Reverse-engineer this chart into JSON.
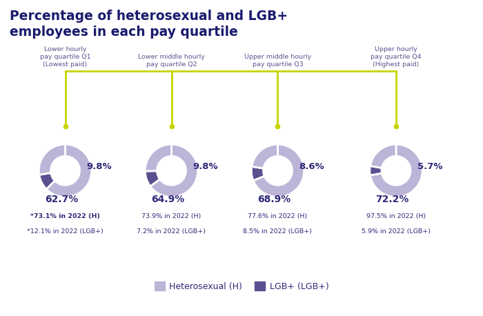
{
  "title": "Percentage of heterosexual and LGB+\nemployees in each pay quartile",
  "title_color": "#1a1a6e",
  "background_color": "#ffffff",
  "quartiles": [
    {
      "label": "Lower hourly\npay quartile Q1\n(Lowest paid)",
      "hetero_pct": 62.7,
      "lgb_pct": 9.8,
      "hetero_label": "62.7%",
      "lgb_label": "9.8%",
      "footnote_line1": "*73.1% in 2022 (H)",
      "footnote_line2": "*12.1% in 2022 (LGB+)",
      "footnote_bold1": true,
      "footnote_bold2": false
    },
    {
      "label": "Lower middle hourly\npay quartile Q2",
      "hetero_pct": 64.9,
      "lgb_pct": 9.8,
      "hetero_label": "64.9%",
      "lgb_label": "9.8%",
      "footnote_line1": "73.9% in 2022 (H)",
      "footnote_line2": "7.2% in 2022 (LGB+)",
      "footnote_bold1": false,
      "footnote_bold2": false
    },
    {
      "label": "Upper middle hourly\npay quartile Q3",
      "hetero_pct": 68.9,
      "lgb_pct": 8.6,
      "hetero_label": "68.9%",
      "lgb_label": "8.6%",
      "footnote_line1": "77.6% in 2022 (H)",
      "footnote_line2": "8.5% in 2022 (LGB+)",
      "footnote_bold1": false,
      "footnote_bold2": false
    },
    {
      "label": "Upper hourly\npay quartile Q4\n(Highest paid)",
      "hetero_pct": 72.2,
      "lgb_pct": 5.7,
      "hetero_label": "72.2%",
      "lgb_label": "5.7%",
      "footnote_line1": "97.5% in 2022 (H)",
      "footnote_line2": "5.9% in 2022 (LGB+)",
      "footnote_bold1": false,
      "footnote_bold2": false
    }
  ],
  "color_hetero": "#bdb5d8",
  "color_lgb": "#5a5090",
  "label_color": "#2d2878",
  "footnote_color": "#2d2878",
  "subtitle_color": "#5a5490",
  "connector_color": "#c8d400",
  "legend_hetero": "Heterosexual (H)",
  "legend_lgb": "LGB+ (LGB+)",
  "donut_width": 0.45,
  "startangle": 90
}
